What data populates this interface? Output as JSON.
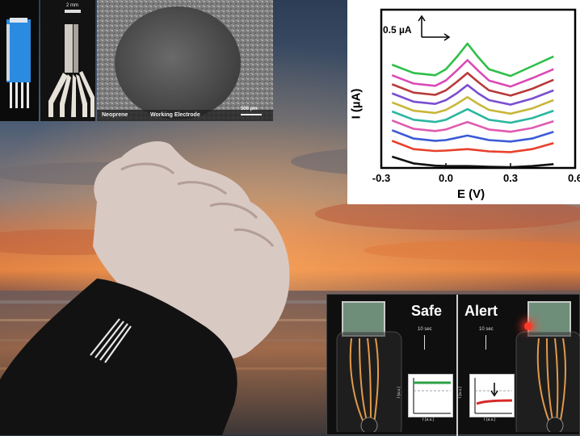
{
  "sem_panel": {
    "scale_top": "2 mm",
    "label_left": "Neoprene",
    "label_center": "Working Electrode",
    "scale_bottom": "500 µm"
  },
  "chart_data": {
    "type": "line",
    "xlabel": "E (V)",
    "ylabel": "I (µA)",
    "x_ticks": [
      "-0.3",
      "0.0",
      "0.3",
      "0.6"
    ],
    "xlim": [
      -0.3,
      0.6
    ],
    "scale_bar_label": "0.5 µA",
    "x": [
      -0.25,
      -0.15,
      -0.05,
      0.0,
      0.05,
      0.1,
      0.15,
      0.2,
      0.3,
      0.4,
      0.5
    ],
    "series": [
      {
        "color": "#111111",
        "values": [
          0.3,
          0.12,
          0.06,
          0.05,
          0.05,
          0.05,
          0.04,
          0.03,
          0.02,
          0.05,
          0.1
        ]
      },
      {
        "color": "#e8402a",
        "values": [
          0.72,
          0.5,
          0.45,
          0.46,
          0.48,
          0.5,
          0.47,
          0.44,
          0.42,
          0.5,
          0.66
        ]
      },
      {
        "color": "#3b5bd6",
        "values": [
          1.0,
          0.78,
          0.72,
          0.74,
          0.8,
          0.86,
          0.8,
          0.74,
          0.7,
          0.78,
          0.96
        ]
      },
      {
        "color": "#e05ab0",
        "values": [
          1.26,
          1.04,
          0.98,
          1.02,
          1.12,
          1.22,
          1.12,
          1.02,
          0.96,
          1.06,
          1.24
        ]
      },
      {
        "color": "#2bb7a0",
        "values": [
          1.5,
          1.28,
          1.22,
          1.28,
          1.42,
          1.56,
          1.42,
          1.28,
          1.2,
          1.32,
          1.52
        ]
      },
      {
        "color": "#c9b63a",
        "values": [
          1.74,
          1.52,
          1.46,
          1.54,
          1.7,
          1.88,
          1.7,
          1.54,
          1.44,
          1.58,
          1.8
        ]
      },
      {
        "color": "#7a4fd0",
        "values": [
          1.98,
          1.76,
          1.7,
          1.8,
          1.98,
          2.2,
          1.98,
          1.8,
          1.68,
          1.84,
          2.06
        ]
      },
      {
        "color": "#b83a3a",
        "values": [
          2.22,
          2.0,
          1.94,
          2.06,
          2.28,
          2.52,
          2.28,
          2.06,
          1.92,
          2.1,
          2.34
        ]
      },
      {
        "color": "#d94ab6",
        "values": [
          2.46,
          2.24,
          2.18,
          2.32,
          2.58,
          2.86,
          2.58,
          2.32,
          2.16,
          2.38,
          2.62
        ]
      },
      {
        "color": "#2fbf4a",
        "values": [
          2.74,
          2.52,
          2.46,
          2.62,
          2.94,
          3.3,
          2.94,
          2.62,
          2.44,
          2.7,
          2.96
        ]
      }
    ]
  },
  "device_panel": {
    "safe_label": "Safe",
    "alert_label": "Alert",
    "time_label_left": "10 sec",
    "time_label_right": "10 sec",
    "inset_y_label": "I (a.u.)",
    "inset_x_label": "t (a.u.)"
  }
}
